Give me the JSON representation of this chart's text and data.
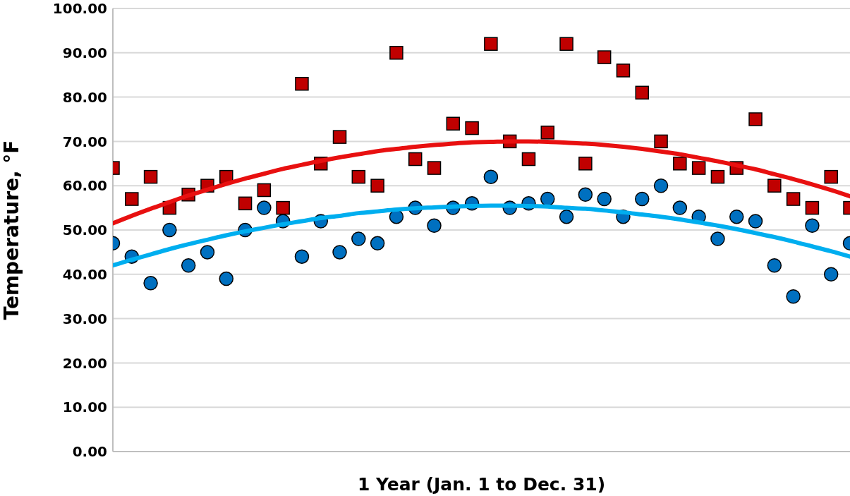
{
  "chart_data": {
    "type": "scatter",
    "xlabel": "1 Year (Jan. 1 to Dec. 31)",
    "ylabel": "Temperature, °F",
    "categories": [
      null,
      null,
      null,
      null,
      null,
      null,
      null,
      null,
      null,
      null,
      null,
      null,
      null,
      null,
      null,
      null,
      null,
      null,
      null,
      null,
      null,
      null,
      null,
      null,
      null,
      null,
      null,
      null,
      null,
      null,
      null,
      null,
      null,
      null,
      null,
      null,
      null,
      null,
      null,
      null
    ],
    "series": [
      {
        "marker": "square",
        "color": "#c00000",
        "values": [
          64,
          57,
          62,
          55,
          58,
          60,
          62,
          56,
          59,
          55,
          83,
          65,
          71,
          62,
          60,
          90,
          66,
          64,
          74,
          73,
          92,
          70,
          66,
          72,
          92,
          65,
          89,
          86,
          81,
          70,
          65,
          64,
          62,
          64,
          75,
          60,
          57,
          55,
          62,
          55
        ]
      },
      {
        "marker": "circle",
        "color": "#0070c0",
        "values": [
          47,
          44,
          38,
          50,
          42,
          45,
          39,
          50,
          55,
          52,
          44,
          52,
          45,
          48,
          47,
          53,
          55,
          51,
          55,
          56,
          62,
          55,
          56,
          57,
          53,
          58,
          57,
          53,
          57,
          60,
          55,
          53,
          48,
          53,
          52,
          42,
          35,
          51,
          40,
          47
        ]
      },
      {
        "type": "line",
        "marker": "none",
        "color": "#e81010",
        "values": [
          51.5,
          53.2,
          54.8,
          56.3,
          57.8,
          59.1,
          60.4,
          61.6,
          62.7,
          63.8,
          64.7,
          65.6,
          66.4,
          67.1,
          67.8,
          68.3,
          68.8,
          69.2,
          69.5,
          69.8,
          69.9,
          70.0,
          70.0,
          69.9,
          69.7,
          69.5,
          69.2,
          68.8,
          68.3,
          67.7,
          67.1,
          66.3,
          65.5,
          64.6,
          63.7,
          62.6,
          61.5,
          60.3,
          59.0,
          57.6
        ]
      },
      {
        "type": "line",
        "marker": "none",
        "color": "#00aeef",
        "values": [
          42.0,
          43.3,
          44.5,
          45.7,
          46.8,
          47.8,
          48.8,
          49.7,
          50.5,
          51.3,
          52.0,
          52.7,
          53.2,
          53.8,
          54.2,
          54.6,
          54.9,
          55.1,
          55.3,
          55.4,
          55.5,
          55.5,
          55.4,
          55.3,
          55.0,
          54.8,
          54.4,
          54.0,
          53.5,
          53.0,
          52.4,
          51.7,
          51.0,
          50.2,
          49.3,
          48.4,
          47.4,
          46.3,
          45.2,
          44.0
        ]
      }
    ],
    "ylim": [
      0,
      100
    ],
    "yticks": [
      {
        "value": 0,
        "label": "0.00"
      },
      {
        "value": 10,
        "label": "10.00"
      },
      {
        "value": 20,
        "label": "20.00"
      },
      {
        "value": 30,
        "label": "30.00"
      },
      {
        "value": 40,
        "label": "40.00"
      },
      {
        "value": 50,
        "label": "50.00"
      },
      {
        "value": 60,
        "label": "60.00"
      },
      {
        "value": 70,
        "label": "70.00"
      },
      {
        "value": 80,
        "label": "80.00"
      },
      {
        "value": 90,
        "label": "90.00"
      },
      {
        "value": 100,
        "label": "100.00"
      }
    ],
    "grid": "y",
    "tick_labels": "y"
  }
}
